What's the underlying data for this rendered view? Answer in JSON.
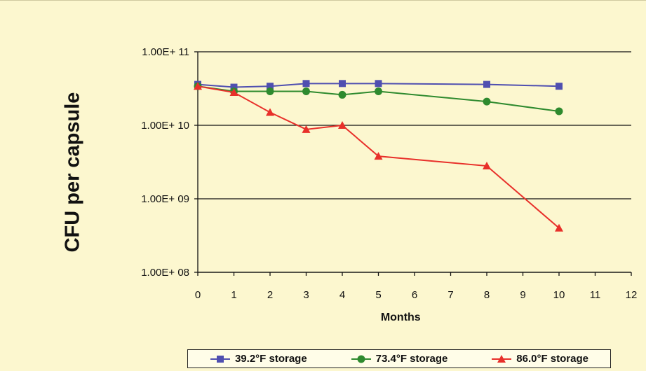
{
  "chart_data": {
    "type": "line",
    "title": "",
    "xlabel": "Months",
    "ylabel": "CFU per capsule",
    "y_scale": "log",
    "xlim": [
      0,
      12
    ],
    "ylim": [
      100000000.0,
      100000000000.0
    ],
    "x_ticks": [
      "0",
      "1",
      "2",
      "3",
      "4",
      "5",
      "6",
      "7",
      "8",
      "9",
      "10",
      "11",
      "12"
    ],
    "y_ticks": [
      {
        "value": 100000000000.0,
        "label": "1.00E+ 11"
      },
      {
        "value": 10000000000.0,
        "label": "1.00E+ 10"
      },
      {
        "value": 1000000000.0,
        "label": "1.00E+ 09"
      },
      {
        "value": 100000000.0,
        "label": "1.00E+ 08"
      }
    ],
    "grid": "horizontal",
    "legend_position": "bottom",
    "series": [
      {
        "name": "39.2°F storage",
        "color": "#4f4fb0",
        "marker": "square",
        "points": [
          [
            0,
            36000000000.0
          ],
          [
            1,
            33000000000.0
          ],
          [
            2,
            34000000000.0
          ],
          [
            3,
            37000000000.0
          ],
          [
            4,
            37000000000.0
          ],
          [
            5,
            37000000000.0
          ],
          [
            8,
            36000000000.0
          ],
          [
            10,
            34000000000.0
          ]
        ]
      },
      {
        "name": "73.4°F storage",
        "color": "#2e8a2e",
        "marker": "circle",
        "points": [
          [
            0,
            34000000000.0
          ],
          [
            1,
            29000000000.0
          ],
          [
            2,
            29000000000.0
          ],
          [
            3,
            29000000000.0
          ],
          [
            4,
            26000000000.0
          ],
          [
            5,
            29000000000.0
          ],
          [
            8,
            21000000000.0
          ],
          [
            10,
            15500000000.0
          ]
        ]
      },
      {
        "name": "86.0°F storage",
        "color": "#e8302a",
        "marker": "triangle",
        "points": [
          [
            0,
            34000000000.0
          ],
          [
            1,
            28000000000.0
          ],
          [
            2,
            15000000000.0
          ],
          [
            3,
            8800000000.0
          ],
          [
            4,
            10000000000.0
          ],
          [
            5,
            3800000000.0
          ],
          [
            8,
            2800000000.0
          ],
          [
            10,
            400000000.0
          ]
        ]
      }
    ]
  }
}
